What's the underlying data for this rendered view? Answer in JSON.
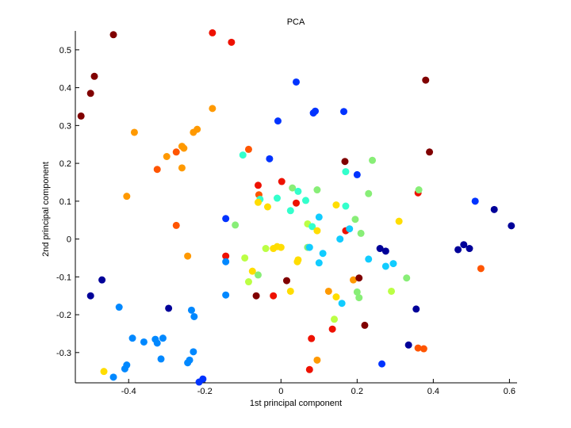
{
  "chart_data": {
    "type": "scatter",
    "title": "PCA",
    "xlabel": "1st principal component",
    "ylabel": "2nd principal component",
    "xlim": [
      -0.54,
      0.62
    ],
    "ylim": [
      -0.38,
      0.55
    ],
    "xticks": [
      {
        "value": -0.4,
        "label": "-0.4"
      },
      {
        "value": -0.2,
        "label": "-0.2"
      },
      {
        "value": 0,
        "label": "0"
      },
      {
        "value": 0.2,
        "label": "0.2"
      },
      {
        "value": 0.4,
        "label": "0.4"
      },
      {
        "value": 0.6,
        "label": "0.6"
      }
    ],
    "yticks": [
      {
        "value": -0.3,
        "label": "-0.3"
      },
      {
        "value": -0.2,
        "label": "-0.2"
      },
      {
        "value": -0.1,
        "label": "-0.1"
      },
      {
        "value": 0,
        "label": "0"
      },
      {
        "value": 0.1,
        "label": "0.1"
      },
      {
        "value": 0.2,
        "label": "0.2"
      },
      {
        "value": 0.3,
        "label": "0.3"
      },
      {
        "value": 0.4,
        "label": "0.4"
      },
      {
        "value": 0.5,
        "label": "0.5"
      }
    ],
    "grid": false,
    "legend": "none",
    "colormap": "jet",
    "palette": {
      "dark_red": "#800000",
      "red": "#ee1100",
      "orange_red": "#ff5500",
      "orange": "#ff9900",
      "yellow": "#ffdd00",
      "yellow_green": "#bbff44",
      "green": "#88ee77",
      "cyan": "#33ffcc",
      "light_blue": "#11ccff",
      "blue": "#0088ff",
      "royal_blue": "#0033ff",
      "navy": "#000099"
    },
    "points": [
      {
        "x": -0.44,
        "y": 0.54,
        "c": "dark_red"
      },
      {
        "x": -0.49,
        "y": 0.43,
        "c": "dark_red"
      },
      {
        "x": -0.5,
        "y": 0.385,
        "c": "dark_red"
      },
      {
        "x": -0.525,
        "y": 0.325,
        "c": "dark_red"
      },
      {
        "x": -0.18,
        "y": 0.545,
        "c": "red"
      },
      {
        "x": -0.13,
        "y": 0.52,
        "c": "red"
      },
      {
        "x": -0.18,
        "y": 0.345,
        "c": "orange"
      },
      {
        "x": -0.385,
        "y": 0.282,
        "c": "orange"
      },
      {
        "x": -0.22,
        "y": 0.29,
        "c": "orange"
      },
      {
        "x": -0.23,
        "y": 0.282,
        "c": "orange"
      },
      {
        "x": -0.26,
        "y": 0.245,
        "c": "orange"
      },
      {
        "x": -0.255,
        "y": 0.24,
        "c": "orange"
      },
      {
        "x": -0.275,
        "y": 0.23,
        "c": "orange_red"
      },
      {
        "x": -0.3,
        "y": 0.218,
        "c": "orange"
      },
      {
        "x": -0.26,
        "y": 0.188,
        "c": "orange"
      },
      {
        "x": -0.325,
        "y": 0.184,
        "c": "orange_red"
      },
      {
        "x": -0.405,
        "y": 0.113,
        "c": "orange"
      },
      {
        "x": -0.275,
        "y": 0.036,
        "c": "orange_red"
      },
      {
        "x": -0.245,
        "y": -0.045,
        "c": "orange"
      },
      {
        "x": -0.465,
        "y": -0.35,
        "c": "yellow"
      },
      {
        "x": -0.47,
        "y": -0.108,
        "c": "navy"
      },
      {
        "x": -0.5,
        "y": -0.15,
        "c": "navy"
      },
      {
        "x": -0.295,
        "y": -0.183,
        "c": "navy"
      },
      {
        "x": -0.425,
        "y": -0.18,
        "c": "blue"
      },
      {
        "x": -0.39,
        "y": -0.262,
        "c": "blue"
      },
      {
        "x": -0.36,
        "y": -0.272,
        "c": "blue"
      },
      {
        "x": -0.33,
        "y": -0.265,
        "c": "blue"
      },
      {
        "x": -0.325,
        "y": -0.275,
        "c": "blue"
      },
      {
        "x": -0.31,
        "y": -0.262,
        "c": "blue"
      },
      {
        "x": -0.405,
        "y": -0.333,
        "c": "blue"
      },
      {
        "x": -0.41,
        "y": -0.343,
        "c": "blue"
      },
      {
        "x": -0.44,
        "y": -0.365,
        "c": "blue"
      },
      {
        "x": -0.315,
        "y": -0.317,
        "c": "blue"
      },
      {
        "x": -0.235,
        "y": -0.188,
        "c": "blue"
      },
      {
        "x": -0.228,
        "y": -0.205,
        "c": "blue"
      },
      {
        "x": -0.23,
        "y": -0.298,
        "c": "blue"
      },
      {
        "x": -0.24,
        "y": -0.32,
        "c": "blue"
      },
      {
        "x": -0.245,
        "y": -0.327,
        "c": "blue"
      },
      {
        "x": -0.205,
        "y": -0.37,
        "c": "royal_blue"
      },
      {
        "x": -0.215,
        "y": -0.378,
        "c": "royal_blue"
      },
      {
        "x": -0.145,
        "y": 0.054,
        "c": "royal_blue"
      },
      {
        "x": -0.145,
        "y": -0.045,
        "c": "red"
      },
      {
        "x": -0.145,
        "y": -0.06,
        "c": "blue"
      },
      {
        "x": -0.145,
        "y": -0.148,
        "c": "blue"
      },
      {
        "x": -0.12,
        "y": 0.037,
        "c": "green"
      },
      {
        "x": -0.1,
        "y": 0.222,
        "c": "cyan"
      },
      {
        "x": -0.085,
        "y": 0.237,
        "c": "orange_red"
      },
      {
        "x": -0.095,
        "y": -0.05,
        "c": "yellow_green"
      },
      {
        "x": -0.085,
        "y": -0.113,
        "c": "yellow_green"
      },
      {
        "x": -0.075,
        "y": -0.085,
        "c": "yellow"
      },
      {
        "x": -0.06,
        "y": -0.095,
        "c": "green"
      },
      {
        "x": -0.065,
        "y": -0.15,
        "c": "dark_red"
      },
      {
        "x": -0.06,
        "y": 0.142,
        "c": "red"
      },
      {
        "x": -0.058,
        "y": 0.117,
        "c": "orange_red"
      },
      {
        "x": -0.055,
        "y": 0.105,
        "c": "cyan"
      },
      {
        "x": -0.06,
        "y": 0.097,
        "c": "yellow"
      },
      {
        "x": -0.035,
        "y": 0.085,
        "c": "yellow"
      },
      {
        "x": -0.03,
        "y": 0.212,
        "c": "royal_blue"
      },
      {
        "x": -0.04,
        "y": -0.025,
        "c": "yellow_green"
      },
      {
        "x": -0.02,
        "y": -0.025,
        "c": "yellow"
      },
      {
        "x": -0.01,
        "y": -0.02,
        "c": "yellow"
      },
      {
        "x": 0.0,
        "y": -0.022,
        "c": "yellow"
      },
      {
        "x": -0.02,
        "y": -0.15,
        "c": "red"
      },
      {
        "x": -0.008,
        "y": 0.312,
        "c": "royal_blue"
      },
      {
        "x": -0.01,
        "y": 0.108,
        "c": "cyan"
      },
      {
        "x": 0.002,
        "y": 0.152,
        "c": "red"
      },
      {
        "x": 0.015,
        "y": -0.11,
        "c": "dark_red"
      },
      {
        "x": 0.025,
        "y": 0.075,
        "c": "cyan"
      },
      {
        "x": 0.03,
        "y": 0.135,
        "c": "green"
      },
      {
        "x": 0.025,
        "y": -0.138,
        "c": "yellow"
      },
      {
        "x": 0.04,
        "y": 0.415,
        "c": "royal_blue"
      },
      {
        "x": 0.04,
        "y": 0.095,
        "c": "red"
      },
      {
        "x": 0.045,
        "y": 0.126,
        "c": "cyan"
      },
      {
        "x": 0.045,
        "y": -0.055,
        "c": "yellow"
      },
      {
        "x": 0.043,
        "y": -0.06,
        "c": "yellow"
      },
      {
        "x": 0.065,
        "y": 0.102,
        "c": "cyan"
      },
      {
        "x": 0.07,
        "y": 0.04,
        "c": "yellow_green"
      },
      {
        "x": 0.07,
        "y": -0.022,
        "c": "green"
      },
      {
        "x": 0.075,
        "y": -0.022,
        "c": "light_blue"
      },
      {
        "x": 0.082,
        "y": 0.033,
        "c": "cyan"
      },
      {
        "x": 0.085,
        "y": 0.333,
        "c": "royal_blue"
      },
      {
        "x": 0.09,
        "y": 0.338,
        "c": "royal_blue"
      },
      {
        "x": 0.095,
        "y": 0.13,
        "c": "green"
      },
      {
        "x": 0.095,
        "y": 0.022,
        "c": "yellow"
      },
      {
        "x": 0.1,
        "y": 0.058,
        "c": "light_blue"
      },
      {
        "x": 0.1,
        "y": -0.063,
        "c": "light_blue"
      },
      {
        "x": 0.11,
        "y": -0.038,
        "c": "light_blue"
      },
      {
        "x": 0.08,
        "y": -0.263,
        "c": "red"
      },
      {
        "x": 0.075,
        "y": -0.345,
        "c": "red"
      },
      {
        "x": 0.095,
        "y": -0.32,
        "c": "orange"
      },
      {
        "x": 0.125,
        "y": -0.138,
        "c": "orange"
      },
      {
        "x": 0.135,
        "y": -0.238,
        "c": "red"
      },
      {
        "x": 0.14,
        "y": -0.212,
        "c": "yellow_green"
      },
      {
        "x": 0.145,
        "y": 0.09,
        "c": "yellow"
      },
      {
        "x": 0.145,
        "y": -0.153,
        "c": "yellow"
      },
      {
        "x": 0.155,
        "y": 0.0,
        "c": "light_blue"
      },
      {
        "x": 0.16,
        "y": -0.17,
        "c": "light_blue"
      },
      {
        "x": 0.165,
        "y": 0.337,
        "c": "royal_blue"
      },
      {
        "x": 0.168,
        "y": 0.205,
        "c": "dark_red"
      },
      {
        "x": 0.17,
        "y": 0.178,
        "c": "cyan"
      },
      {
        "x": 0.17,
        "y": 0.087,
        "c": "cyan"
      },
      {
        "x": 0.17,
        "y": 0.022,
        "c": "red"
      },
      {
        "x": 0.18,
        "y": 0.027,
        "c": "light_blue"
      },
      {
        "x": 0.19,
        "y": -0.108,
        "c": "orange"
      },
      {
        "x": 0.195,
        "y": 0.052,
        "c": "green"
      },
      {
        "x": 0.2,
        "y": 0.17,
        "c": "royal_blue"
      },
      {
        "x": 0.2,
        "y": -0.14,
        "c": "green"
      },
      {
        "x": 0.205,
        "y": -0.103,
        "c": "dark_red"
      },
      {
        "x": 0.205,
        "y": -0.155,
        "c": "green"
      },
      {
        "x": 0.21,
        "y": 0.015,
        "c": "green"
      },
      {
        "x": 0.22,
        "y": -0.228,
        "c": "dark_red"
      },
      {
        "x": 0.23,
        "y": 0.12,
        "c": "green"
      },
      {
        "x": 0.23,
        "y": -0.053,
        "c": "light_blue"
      },
      {
        "x": 0.24,
        "y": 0.208,
        "c": "green"
      },
      {
        "x": 0.26,
        "y": -0.025,
        "c": "navy"
      },
      {
        "x": 0.265,
        "y": -0.33,
        "c": "royal_blue"
      },
      {
        "x": 0.275,
        "y": -0.032,
        "c": "navy"
      },
      {
        "x": 0.275,
        "y": -0.072,
        "c": "light_blue"
      },
      {
        "x": 0.29,
        "y": -0.138,
        "c": "yellow_green"
      },
      {
        "x": 0.295,
        "y": -0.065,
        "c": "light_blue"
      },
      {
        "x": 0.31,
        "y": 0.047,
        "c": "yellow"
      },
      {
        "x": 0.33,
        "y": -0.103,
        "c": "green"
      },
      {
        "x": 0.335,
        "y": -0.28,
        "c": "navy"
      },
      {
        "x": 0.355,
        "y": -0.185,
        "c": "navy"
      },
      {
        "x": 0.36,
        "y": 0.122,
        "c": "red"
      },
      {
        "x": 0.362,
        "y": 0.13,
        "c": "green"
      },
      {
        "x": 0.36,
        "y": -0.288,
        "c": "orange_red"
      },
      {
        "x": 0.375,
        "y": -0.29,
        "c": "orange_red"
      },
      {
        "x": 0.38,
        "y": 0.42,
        "c": "dark_red"
      },
      {
        "x": 0.39,
        "y": 0.23,
        "c": "dark_red"
      },
      {
        "x": 0.465,
        "y": -0.028,
        "c": "navy"
      },
      {
        "x": 0.48,
        "y": -0.015,
        "c": "navy"
      },
      {
        "x": 0.495,
        "y": -0.025,
        "c": "navy"
      },
      {
        "x": 0.51,
        "y": 0.1,
        "c": "royal_blue"
      },
      {
        "x": 0.525,
        "y": -0.078,
        "c": "orange_red"
      },
      {
        "x": 0.56,
        "y": 0.078,
        "c": "navy"
      },
      {
        "x": 0.605,
        "y": 0.035,
        "c": "navy"
      }
    ]
  }
}
